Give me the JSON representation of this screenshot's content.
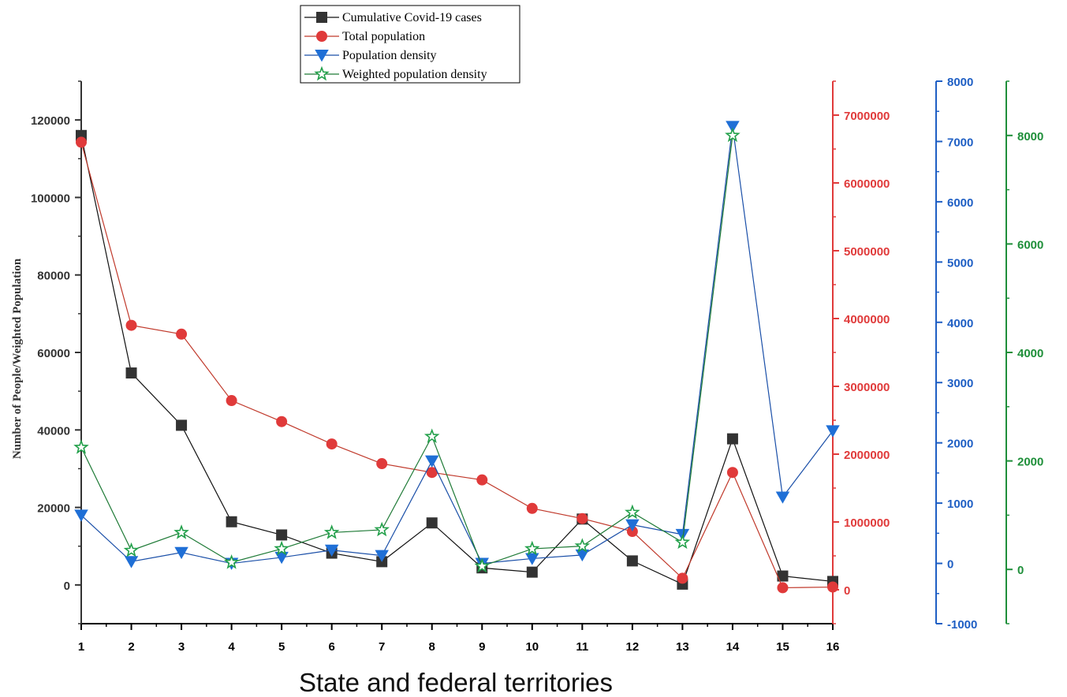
{
  "chart_data": {
    "type": "line",
    "xlabel": "State and federal territories",
    "ylabel": "Number of People/Weighted Population",
    "categories": [
      "1",
      "2",
      "3",
      "4",
      "5",
      "6",
      "7",
      "8",
      "9",
      "10",
      "11",
      "12",
      "13",
      "14",
      "15",
      "16"
    ],
    "axes": {
      "left": {
        "ylim": [
          -10000,
          130000
        ],
        "ticks": [
          0,
          20000,
          40000,
          60000,
          80000,
          100000,
          120000
        ],
        "ticklabels": [
          "0",
          "20000",
          "40000",
          "60000",
          "80000",
          "100000",
          "120000"
        ],
        "color": "#333333"
      },
      "right1": {
        "ylim": [
          -500000,
          7500000
        ],
        "ticks": [
          0,
          1000000,
          2000000,
          3000000,
          4000000,
          5000000,
          6000000,
          7000000
        ],
        "ticklabels": [
          "0",
          "1000000",
          "2000000",
          "3000000",
          "4000000",
          "5000000",
          "6000000",
          "7000000"
        ],
        "color": "#e03a3a"
      },
      "right2": {
        "ylim": [
          -1000,
          8000
        ],
        "ticks": [
          -1000,
          0,
          1000,
          2000,
          3000,
          4000,
          5000,
          6000,
          7000,
          8000
        ],
        "ticklabels": [
          "-1000",
          "0",
          "1000",
          "2000",
          "3000",
          "4000",
          "5000",
          "6000",
          "7000",
          "8000"
        ],
        "color": "#1f5fc4"
      },
      "right3": {
        "ylim": [
          -1000,
          9000
        ],
        "ticks": [
          0,
          2000,
          4000,
          6000,
          8000
        ],
        "ticklabels": [
          "0",
          "2000",
          "4000",
          "6000",
          "8000"
        ],
        "color": "#1f8f3a"
      }
    },
    "series": [
      {
        "name": "Cumulative Covid-19 cases",
        "axis": "left",
        "color": "#333333",
        "line_color": "#111111",
        "marker": "square",
        "values": [
          116000,
          54700,
          41200,
          16300,
          12900,
          8200,
          6000,
          16000,
          4400,
          3300,
          17000,
          6200,
          200,
          37700,
          2300,
          900
        ]
      },
      {
        "name": "Total population",
        "axis": "right1",
        "color": "#e03a3a",
        "line_color": "#c0392b",
        "marker": "circle",
        "values": [
          6600000,
          3900000,
          3770000,
          2790000,
          2480000,
          2150000,
          1860000,
          1730000,
          1620000,
          1200000,
          1050000,
          860000,
          170000,
          1730000,
          30000,
          40000
        ]
      },
      {
        "name": "Population density",
        "axis": "right2",
        "color": "#1f6fd6",
        "line_color": "#1a4fa8",
        "marker": "triangle-down",
        "values": [
          800,
          30,
          180,
          0,
          100,
          220,
          130,
          1700,
          0,
          80,
          140,
          640,
          480,
          7250,
          1100,
          2200
        ]
      },
      {
        "name": "Weighted population density",
        "axis": "right3",
        "color": "#22a04a",
        "line_color": "#1e7a36",
        "marker": "star",
        "values": [
          2250,
          350,
          680,
          130,
          380,
          680,
          730,
          2450,
          60,
          380,
          430,
          1050,
          500,
          8000,
          null,
          null
        ]
      }
    ],
    "legend": {
      "position": "top-center"
    },
    "grid": false
  }
}
